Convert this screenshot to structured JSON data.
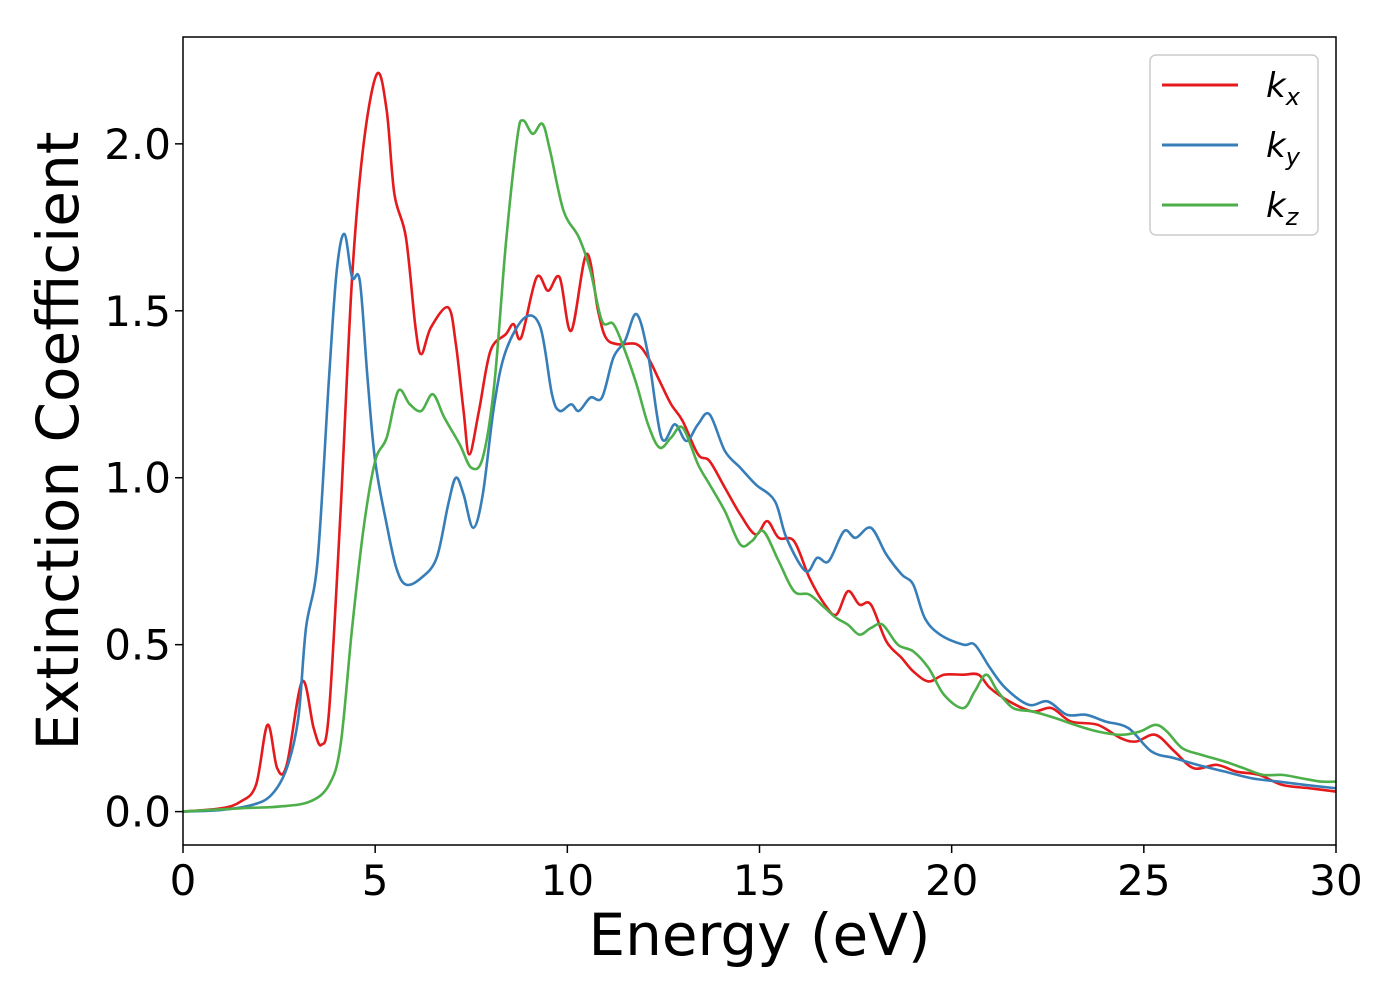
{
  "chart_data": {
    "type": "line",
    "title": "",
    "xlabel": "Energy (eV)",
    "ylabel": "Extinction Coefficient",
    "xlim": [
      0,
      30
    ],
    "ylim": [
      -0.1,
      2.32
    ],
    "xticks": [
      0,
      5,
      10,
      15,
      20,
      25,
      30
    ],
    "xtick_labels": [
      "0",
      "5",
      "10",
      "15",
      "20",
      "25",
      "30"
    ],
    "yticks": [
      0.0,
      0.5,
      1.0,
      1.5,
      2.0
    ],
    "ytick_labels": [
      "0.0",
      "0.5",
      "1.0",
      "1.5",
      "2.0"
    ],
    "grid": false,
    "legend_position": "top-right",
    "series": [
      {
        "name": "k_x",
        "label_main": "k",
        "label_sub": "x",
        "color": "#e41a1c",
        "points": [
          [
            0,
            0.0
          ],
          [
            1.0,
            0.01
          ],
          [
            1.5,
            0.03
          ],
          [
            1.9,
            0.08
          ],
          [
            2.2,
            0.26
          ],
          [
            2.45,
            0.13
          ],
          [
            2.7,
            0.14
          ],
          [
            3.1,
            0.39
          ],
          [
            3.4,
            0.25
          ],
          [
            3.6,
            0.2
          ],
          [
            3.8,
            0.3
          ],
          [
            4.1,
            0.9
          ],
          [
            4.4,
            1.6
          ],
          [
            4.7,
            2.0
          ],
          [
            5.05,
            2.21
          ],
          [
            5.3,
            2.1
          ],
          [
            5.5,
            1.85
          ],
          [
            5.8,
            1.72
          ],
          [
            6.05,
            1.45
          ],
          [
            6.2,
            1.37
          ],
          [
            6.45,
            1.45
          ],
          [
            6.9,
            1.51
          ],
          [
            7.1,
            1.4
          ],
          [
            7.3,
            1.2
          ],
          [
            7.45,
            1.07
          ],
          [
            7.7,
            1.2
          ],
          [
            8.0,
            1.38
          ],
          [
            8.4,
            1.43
          ],
          [
            8.6,
            1.46
          ],
          [
            8.8,
            1.42
          ],
          [
            9.2,
            1.6
          ],
          [
            9.5,
            1.56
          ],
          [
            9.8,
            1.6
          ],
          [
            10.1,
            1.44
          ],
          [
            10.5,
            1.67
          ],
          [
            10.8,
            1.5
          ],
          [
            11.0,
            1.42
          ],
          [
            11.3,
            1.4
          ],
          [
            11.8,
            1.4
          ],
          [
            12.1,
            1.36
          ],
          [
            12.4,
            1.29
          ],
          [
            12.7,
            1.22
          ],
          [
            13.0,
            1.17
          ],
          [
            13.4,
            1.07
          ],
          [
            13.7,
            1.05
          ],
          [
            14.1,
            0.97
          ],
          [
            14.5,
            0.89
          ],
          [
            14.9,
            0.83
          ],
          [
            15.2,
            0.87
          ],
          [
            15.5,
            0.82
          ],
          [
            15.9,
            0.81
          ],
          [
            16.3,
            0.7
          ],
          [
            16.7,
            0.62
          ],
          [
            17.0,
            0.59
          ],
          [
            17.3,
            0.66
          ],
          [
            17.6,
            0.62
          ],
          [
            17.9,
            0.62
          ],
          [
            18.3,
            0.51
          ],
          [
            18.7,
            0.46
          ],
          [
            19.0,
            0.42
          ],
          [
            19.4,
            0.39
          ],
          [
            19.8,
            0.41
          ],
          [
            20.3,
            0.41
          ],
          [
            20.7,
            0.41
          ],
          [
            21.0,
            0.37
          ],
          [
            21.5,
            0.33
          ],
          [
            22.1,
            0.3
          ],
          [
            22.6,
            0.31
          ],
          [
            23.1,
            0.27
          ],
          [
            23.8,
            0.26
          ],
          [
            24.4,
            0.22
          ],
          [
            24.8,
            0.21
          ],
          [
            25.3,
            0.23
          ],
          [
            25.8,
            0.18
          ],
          [
            26.3,
            0.13
          ],
          [
            26.9,
            0.14
          ],
          [
            27.4,
            0.12
          ],
          [
            28.0,
            0.11
          ],
          [
            28.6,
            0.08
          ],
          [
            29.3,
            0.07
          ],
          [
            30.0,
            0.06
          ]
        ]
      },
      {
        "name": "k_y",
        "label_main": "k",
        "label_sub": "y",
        "color": "#377eb8",
        "points": [
          [
            0,
            0.0
          ],
          [
            1.0,
            0.005
          ],
          [
            1.8,
            0.02
          ],
          [
            2.3,
            0.05
          ],
          [
            2.7,
            0.13
          ],
          [
            3.0,
            0.28
          ],
          [
            3.2,
            0.55
          ],
          [
            3.5,
            0.75
          ],
          [
            3.8,
            1.3
          ],
          [
            4.0,
            1.62
          ],
          [
            4.2,
            1.73
          ],
          [
            4.4,
            1.6
          ],
          [
            4.6,
            1.59
          ],
          [
            4.8,
            1.3
          ],
          [
            5.0,
            1.05
          ],
          [
            5.3,
            0.86
          ],
          [
            5.55,
            0.73
          ],
          [
            5.8,
            0.68
          ],
          [
            6.2,
            0.7
          ],
          [
            6.6,
            0.76
          ],
          [
            6.9,
            0.92
          ],
          [
            7.1,
            1.0
          ],
          [
            7.3,
            0.95
          ],
          [
            7.55,
            0.85
          ],
          [
            7.8,
            0.95
          ],
          [
            8.1,
            1.22
          ],
          [
            8.4,
            1.38
          ],
          [
            8.9,
            1.48
          ],
          [
            9.3,
            1.45
          ],
          [
            9.6,
            1.25
          ],
          [
            9.8,
            1.2
          ],
          [
            10.1,
            1.22
          ],
          [
            10.3,
            1.2
          ],
          [
            10.6,
            1.24
          ],
          [
            10.9,
            1.24
          ],
          [
            11.2,
            1.36
          ],
          [
            11.5,
            1.41
          ],
          [
            11.8,
            1.49
          ],
          [
            12.1,
            1.37
          ],
          [
            12.45,
            1.12
          ],
          [
            12.8,
            1.16
          ],
          [
            13.1,
            1.11
          ],
          [
            13.4,
            1.16
          ],
          [
            13.7,
            1.19
          ],
          [
            14.1,
            1.08
          ],
          [
            14.5,
            1.03
          ],
          [
            14.9,
            0.98
          ],
          [
            15.4,
            0.93
          ],
          [
            15.7,
            0.82
          ],
          [
            16.2,
            0.72
          ],
          [
            16.5,
            0.76
          ],
          [
            16.8,
            0.75
          ],
          [
            17.2,
            0.84
          ],
          [
            17.5,
            0.82
          ],
          [
            17.9,
            0.85
          ],
          [
            18.3,
            0.77
          ],
          [
            18.7,
            0.71
          ],
          [
            19.0,
            0.68
          ],
          [
            19.3,
            0.58
          ],
          [
            19.7,
            0.53
          ],
          [
            20.3,
            0.5
          ],
          [
            20.6,
            0.5
          ],
          [
            21.0,
            0.43
          ],
          [
            21.4,
            0.37
          ],
          [
            22.0,
            0.32
          ],
          [
            22.5,
            0.33
          ],
          [
            23.0,
            0.29
          ],
          [
            23.5,
            0.29
          ],
          [
            24.0,
            0.27
          ],
          [
            24.6,
            0.25
          ],
          [
            25.2,
            0.18
          ],
          [
            25.8,
            0.16
          ],
          [
            26.4,
            0.14
          ],
          [
            27.1,
            0.12
          ],
          [
            27.8,
            0.1
          ],
          [
            28.5,
            0.09
          ],
          [
            29.2,
            0.08
          ],
          [
            30.0,
            0.07
          ]
        ]
      },
      {
        "name": "k_z",
        "label_main": "k",
        "label_sub": "z",
        "color": "#4daf4a",
        "points": [
          [
            0,
            0.0
          ],
          [
            1.5,
            0.01
          ],
          [
            2.5,
            0.015
          ],
          [
            3.3,
            0.03
          ],
          [
            3.8,
            0.08
          ],
          [
            4.1,
            0.2
          ],
          [
            4.4,
            0.55
          ],
          [
            4.7,
            0.85
          ],
          [
            5.0,
            1.05
          ],
          [
            5.3,
            1.12
          ],
          [
            5.6,
            1.26
          ],
          [
            5.9,
            1.22
          ],
          [
            6.2,
            1.2
          ],
          [
            6.5,
            1.25
          ],
          [
            6.8,
            1.18
          ],
          [
            7.2,
            1.1
          ],
          [
            7.5,
            1.03
          ],
          [
            7.8,
            1.06
          ],
          [
            8.1,
            1.28
          ],
          [
            8.4,
            1.7
          ],
          [
            8.7,
            2.02
          ],
          [
            8.85,
            2.07
          ],
          [
            9.1,
            2.03
          ],
          [
            9.35,
            2.06
          ],
          [
            9.55,
            1.98
          ],
          [
            9.9,
            1.8
          ],
          [
            10.3,
            1.72
          ],
          [
            10.6,
            1.62
          ],
          [
            10.9,
            1.47
          ],
          [
            11.2,
            1.46
          ],
          [
            11.5,
            1.38
          ],
          [
            11.8,
            1.28
          ],
          [
            12.1,
            1.16
          ],
          [
            12.4,
            1.09
          ],
          [
            12.7,
            1.12
          ],
          [
            13.0,
            1.15
          ],
          [
            13.4,
            1.04
          ],
          [
            13.7,
            0.98
          ],
          [
            14.1,
            0.9
          ],
          [
            14.5,
            0.8
          ],
          [
            14.8,
            0.81
          ],
          [
            15.1,
            0.84
          ],
          [
            15.5,
            0.75
          ],
          [
            15.9,
            0.66
          ],
          [
            16.3,
            0.65
          ],
          [
            16.7,
            0.61
          ],
          [
            17.0,
            0.58
          ],
          [
            17.3,
            0.56
          ],
          [
            17.6,
            0.53
          ],
          [
            17.9,
            0.55
          ],
          [
            18.2,
            0.56
          ],
          [
            18.6,
            0.5
          ],
          [
            19.0,
            0.48
          ],
          [
            19.4,
            0.43
          ],
          [
            19.8,
            0.35
          ],
          [
            20.3,
            0.31
          ],
          [
            20.6,
            0.36
          ],
          [
            20.9,
            0.41
          ],
          [
            21.2,
            0.36
          ],
          [
            21.6,
            0.31
          ],
          [
            22.1,
            0.3
          ],
          [
            22.7,
            0.28
          ],
          [
            23.2,
            0.26
          ],
          [
            23.8,
            0.24
          ],
          [
            24.4,
            0.23
          ],
          [
            24.9,
            0.24
          ],
          [
            25.3,
            0.26
          ],
          [
            25.6,
            0.24
          ],
          [
            26.0,
            0.19
          ],
          [
            26.5,
            0.17
          ],
          [
            27.1,
            0.15
          ],
          [
            27.6,
            0.13
          ],
          [
            28.1,
            0.11
          ],
          [
            28.6,
            0.11
          ],
          [
            29.1,
            0.1
          ],
          [
            29.6,
            0.09
          ],
          [
            30.0,
            0.09
          ]
        ]
      }
    ]
  }
}
